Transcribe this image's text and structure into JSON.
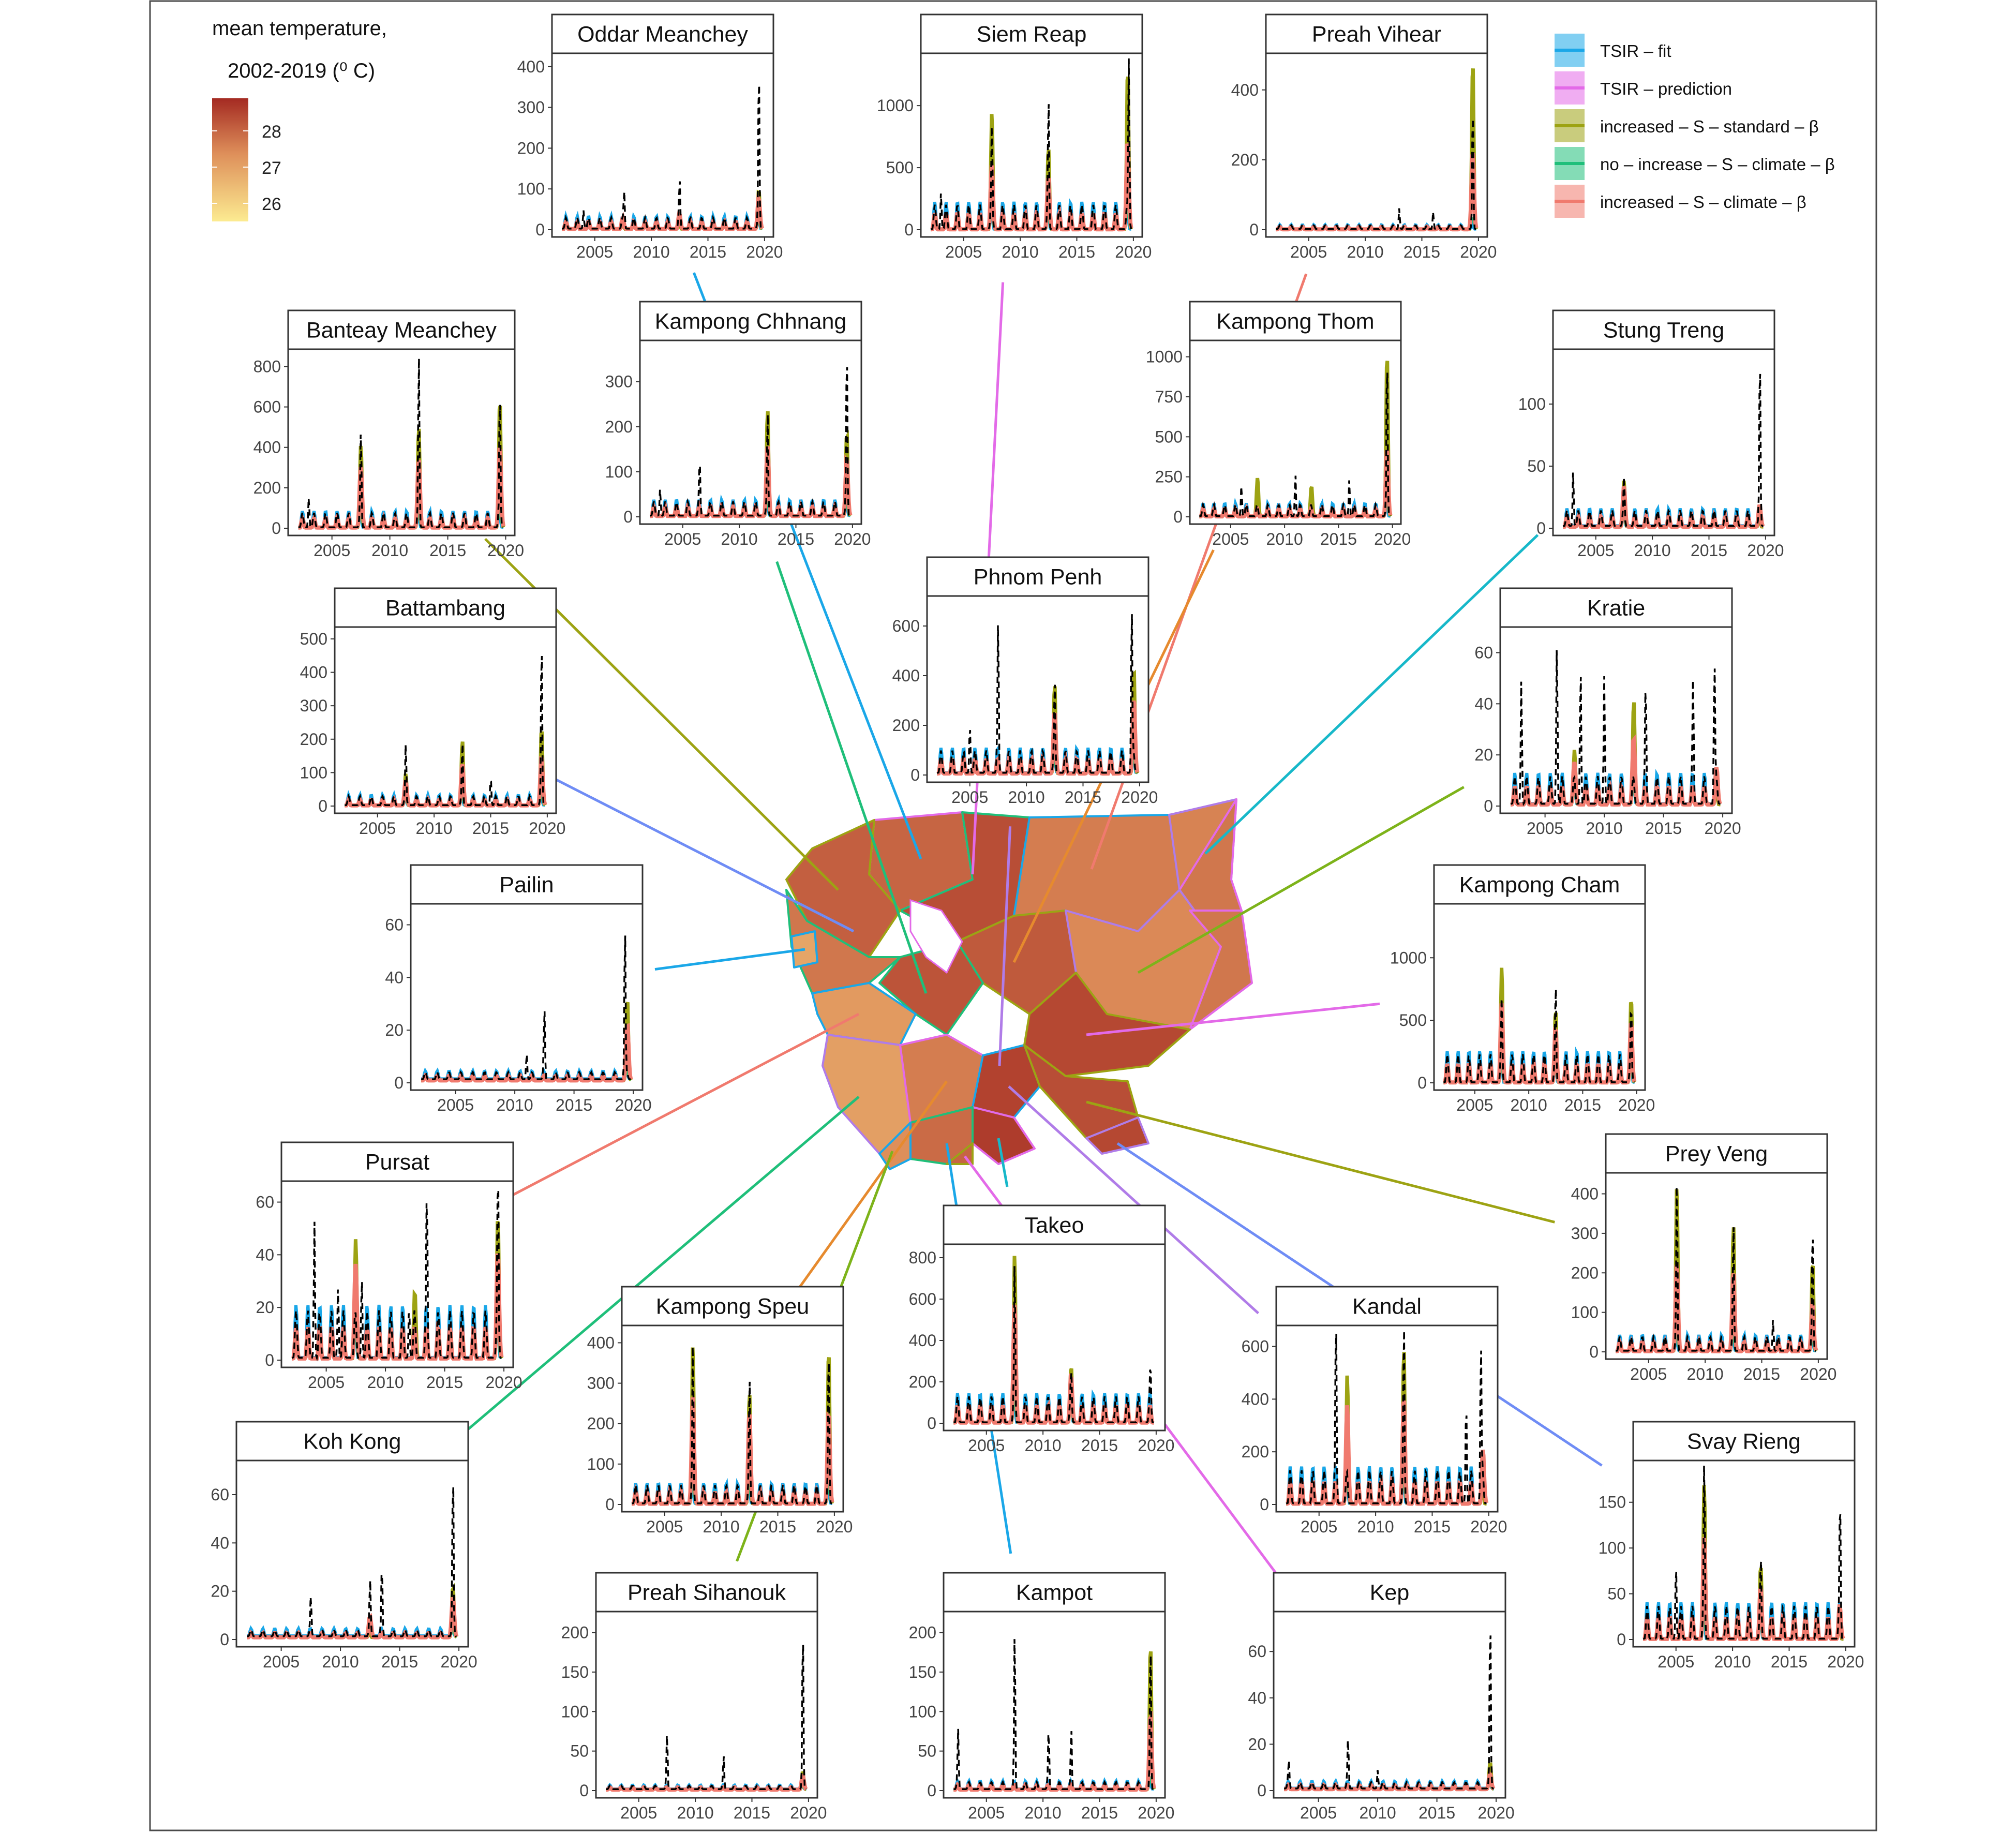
{
  "colors": {
    "tsir_fit": "#1AA7E8",
    "tsir_prediction": "#E36AE8",
    "increased_standard": "#9DA313",
    "no_increase_climate": "#1FBF7A",
    "increased_climate": "#F07A6E",
    "observed": "#000000",
    "temp_low": "#FCEB91",
    "temp_mid": "#DE8F5A",
    "temp_high": "#A42A22"
  },
  "temperature_legend": {
    "title_line1": "mean temperature,",
    "title_line2": "2002-2019 (⁰ C)",
    "ticks": [
      {
        "value": 28,
        "label": "28"
      },
      {
        "value": 27,
        "label": "27"
      },
      {
        "value": 26,
        "label": "26"
      }
    ],
    "range": [
      25.5,
      28.9
    ]
  },
  "series_legend": [
    {
      "key": "tsir_fit",
      "label": "TSIR – fit"
    },
    {
      "key": "tsir_prediction",
      "label": "TSIR – prediction"
    },
    {
      "key": "increased_standard",
      "label": "increased – S – standard – β"
    },
    {
      "key": "no_increase_climate",
      "label": "no – increase – S – climate – β"
    },
    {
      "key": "increased_climate",
      "label": "increased – S – climate – β"
    }
  ],
  "x_ticks": [
    "2005",
    "2010",
    "2015",
    "2020"
  ],
  "provinces": [
    {
      "name": "Oddar Meanchey",
      "temperature": 27.9,
      "yticks": [
        "0",
        "100",
        "200",
        "300",
        "400"
      ],
      "ymax": 420,
      "fit_amp": 30,
      "fit_base": 3,
      "obs_peaks": [
        [
          2004,
          45
        ],
        [
          2007.6,
          90
        ],
        [
          2012.5,
          100
        ],
        [
          2019.5,
          390
        ]
      ],
      "std_peaks": [
        [
          2019.5,
          80
        ]
      ],
      "clim_peaks": [
        [
          2007.5,
          10
        ],
        [
          2012.5,
          20
        ],
        [
          2019.5,
          60
        ]
      ]
    },
    {
      "name": "Siem Reap",
      "temperature": 28.3,
      "yticks": [
        "0",
        "500",
        "1000"
      ],
      "ymax": 1380,
      "fit_amp": 220,
      "fit_base": 5,
      "obs_peaks": [
        [
          2003,
          300
        ],
        [
          2007.5,
          700
        ],
        [
          2012.5,
          900
        ],
        [
          2019.6,
          1350
        ]
      ],
      "std_peaks": [
        [
          2007.5,
          830
        ],
        [
          2012.5,
          550
        ],
        [
          2019.5,
          1200
        ]
      ],
      "clim_peaks": [
        [
          2007.5,
          400
        ],
        [
          2012.5,
          300
        ],
        [
          2019.5,
          600
        ]
      ]
    },
    {
      "name": "Preah Vihear",
      "temperature": 27.5,
      "yticks": [
        "0",
        "200",
        "400"
      ],
      "ymax": 490,
      "fit_amp": 12,
      "fit_base": 2,
      "obs_peaks": [
        [
          2013,
          60
        ],
        [
          2016,
          50
        ],
        [
          2019.5,
          360
        ]
      ],
      "std_peaks": [
        [
          2019.5,
          480
        ]
      ],
      "clim_peaks": [
        [
          2019.5,
          220
        ]
      ]
    },
    {
      "name": "Banteay Meanchey",
      "temperature": 28.0,
      "yticks": [
        "0",
        "200",
        "400",
        "600",
        "800"
      ],
      "ymax": 860,
      "fit_amp": 80,
      "fit_base": 5,
      "obs_peaks": [
        [
          2003,
          150
        ],
        [
          2007.5,
          430
        ],
        [
          2012.5,
          820
        ],
        [
          2019.5,
          650
        ]
      ],
      "std_peaks": [
        [
          2007.5,
          370
        ],
        [
          2012.5,
          460
        ],
        [
          2019.5,
          600
        ]
      ],
      "clim_peaks": [
        [
          2007.5,
          260
        ],
        [
          2012.5,
          300
        ],
        [
          2019.5,
          360
        ]
      ]
    },
    {
      "name": "Kampong Chhnang",
      "temperature": 28.2,
      "yticks": [
        "0",
        "100",
        "200",
        "300"
      ],
      "ymax": 380,
      "fit_amp": 35,
      "fit_base": 3,
      "obs_peaks": [
        [
          2003,
          60
        ],
        [
          2006.5,
          100
        ],
        [
          2012.5,
          210
        ],
        [
          2019.5,
          360
        ]
      ],
      "std_peaks": [
        [
          2012.5,
          220
        ],
        [
          2019.5,
          170
        ]
      ],
      "clim_peaks": [
        [
          2012.5,
          140
        ],
        [
          2019.5,
          110
        ]
      ]
    },
    {
      "name": "Kampong Thom",
      "temperature": 28.1,
      "yticks": [
        "0",
        "250",
        "500",
        "750",
        "1000"
      ],
      "ymax": 1070,
      "fit_amp": 80,
      "fit_base": 5,
      "obs_peaks": [
        [
          2006,
          200
        ],
        [
          2011,
          270
        ],
        [
          2016,
          230
        ],
        [
          2019.5,
          990
        ]
      ],
      "std_peaks": [
        [
          2007.5,
          200
        ],
        [
          2012.5,
          150
        ],
        [
          2019.5,
          990
        ]
      ],
      "clim_peaks": [
        [
          2019.5,
          380
        ]
      ]
    },
    {
      "name": "Stung Treng",
      "temperature": 27.4,
      "yticks": [
        "0",
        "50",
        "100"
      ],
      "ymax": 140,
      "fit_amp": 14,
      "fit_base": 2,
      "obs_peaks": [
        [
          2003,
          45
        ],
        [
          2007.5,
          30
        ],
        [
          2019.5,
          133
        ]
      ],
      "std_peaks": [
        [
          2007.5,
          30
        ]
      ],
      "clim_peaks": [
        [
          2007.5,
          25
        ],
        [
          2019.5,
          10
        ]
      ]
    },
    {
      "name": "Phnom Penh",
      "temperature": 28.7,
      "yticks": [
        "0",
        "200",
        "400",
        "600"
      ],
      "ymax": 700,
      "fit_amp": 100,
      "fit_base": 10,
      "obs_peaks": [
        [
          2005,
          200
        ],
        [
          2007.5,
          560
        ],
        [
          2012.5,
          300
        ],
        [
          2019.3,
          680
        ]
      ],
      "std_peaks": [
        [
          2012.5,
          310
        ],
        [
          2019.5,
          380
        ]
      ],
      "clim_peaks": [
        [
          2012.5,
          200
        ],
        [
          2019.5,
          250
        ]
      ]
    },
    {
      "name": "Battambang",
      "temperature": 27.6,
      "yticks": [
        "0",
        "100",
        "200",
        "300",
        "400",
        "500"
      ],
      "ymax": 520,
      "fit_amp": 30,
      "fit_base": 3,
      "obs_peaks": [
        [
          2007.5,
          170
        ],
        [
          2012.5,
          170
        ],
        [
          2015,
          90
        ],
        [
          2019.5,
          500
        ]
      ],
      "std_peaks": [
        [
          2007.5,
          80
        ],
        [
          2012.5,
          180
        ],
        [
          2019.5,
          220
        ]
      ],
      "clim_peaks": [
        [
          2007.5,
          60
        ],
        [
          2012.5,
          110
        ],
        [
          2019.5,
          130
        ]
      ]
    },
    {
      "name": "Kratie",
      "temperature": 27.3,
      "yticks": [
        "0",
        "20",
        "40",
        "60"
      ],
      "ymax": 68,
      "fit_amp": 12,
      "fit_base": 1,
      "obs_peaks": [
        [
          2003,
          50
        ],
        [
          2006,
          65
        ],
        [
          2008,
          55
        ],
        [
          2010,
          50
        ],
        [
          2013.5,
          40
        ],
        [
          2017.5,
          40
        ],
        [
          2019.3,
          55
        ]
      ],
      "std_peaks": [
        [
          2007.5,
          15
        ],
        [
          2012.5,
          35
        ]
      ],
      "clim_peaks": [
        [
          2007.5,
          10
        ],
        [
          2012.5,
          20
        ],
        [
          2019.5,
          8
        ]
      ]
    },
    {
      "name": "Pailin",
      "temperature": 26.8,
      "yticks": [
        "0",
        "20",
        "40",
        "60"
      ],
      "ymax": 66,
      "fit_amp": 3,
      "fit_base": 1.5,
      "obs_peaks": [
        [
          2011,
          10
        ],
        [
          2012.5,
          25
        ],
        [
          2019.3,
          60
        ]
      ],
      "std_peaks": [
        [
          2019.5,
          30
        ]
      ],
      "clim_peaks": [
        [
          2019.5,
          20
        ]
      ]
    },
    {
      "name": "Kampong Cham",
      "temperature": 28.4,
      "yticks": [
        "0",
        "500",
        "1000"
      ],
      "ymax": 1390,
      "fit_amp": 250,
      "fit_base": 5,
      "obs_peaks": [
        [
          2007.5,
          500
        ],
        [
          2012.5,
          600
        ],
        [
          2019.5,
          450
        ]
      ],
      "std_peaks": [
        [
          2007.5,
          800
        ],
        [
          2012.5,
          450
        ],
        [
          2019.5,
          550
        ]
      ],
      "clim_peaks": [
        [
          2007.5,
          500
        ],
        [
          2012.5,
          300
        ],
        [
          2019.5,
          350
        ]
      ]
    },
    {
      "name": "Pursat",
      "temperature": 27.0,
      "yticks": [
        "0",
        "20",
        "40",
        "60"
      ],
      "ymax": 66,
      "fit_amp": 20,
      "fit_base": 1,
      "obs_peaks": [
        [
          2004,
          52
        ],
        [
          2006,
          28
        ],
        [
          2008,
          32
        ],
        [
          2012,
          20
        ],
        [
          2013.5,
          50
        ],
        [
          2019.5,
          60
        ]
      ],
      "std_peaks": [
        [
          2007.5,
          35
        ],
        [
          2012.5,
          15
        ],
        [
          2019.5,
          45
        ]
      ],
      "clim_peaks": [
        [
          2007.5,
          25
        ],
        [
          2019.5,
          30
        ]
      ]
    },
    {
      "name": "Prey Veng",
      "temperature": 28.3,
      "yticks": [
        "0",
        "100",
        "200",
        "300",
        "400"
      ],
      "ymax": 440,
      "fit_amp": 40,
      "fit_base": 3,
      "obs_peaks": [
        [
          2007.5,
          420
        ],
        [
          2012.5,
          300
        ],
        [
          2016,
          80
        ],
        [
          2019.5,
          300
        ]
      ],
      "std_peaks": [
        [
          2007.5,
          400
        ],
        [
          2012.5,
          300
        ],
        [
          2019.5,
          210
        ]
      ],
      "clim_peaks": [
        [
          2007.5,
          200
        ],
        [
          2012.5,
          180
        ],
        [
          2019.5,
          100
        ]
      ]
    },
    {
      "name": "Koh Kong",
      "temperature": 26.9,
      "yticks": [
        "0",
        "20",
        "40",
        "60"
      ],
      "ymax": 72,
      "fit_amp": 3,
      "fit_base": 1.5,
      "obs_peaks": [
        [
          2007.5,
          15
        ],
        [
          2012.5,
          22
        ],
        [
          2013.5,
          28
        ],
        [
          2019.5,
          70
        ]
      ],
      "std_peaks": [
        [
          2019.5,
          20
        ]
      ],
      "clim_peaks": [
        [
          2012.5,
          7
        ],
        [
          2019.5,
          15
        ]
      ]
    },
    {
      "name": "Kampong Speu",
      "temperature": 27.5,
      "yticks": [
        "0",
        "100",
        "200",
        "300",
        "400"
      ],
      "ymax": 430,
      "fit_amp": 50,
      "fit_base": 3,
      "obs_peaks": [
        [
          2007.5,
          380
        ],
        [
          2012.5,
          280
        ],
        [
          2019.5,
          370
        ]
      ],
      "std_peaks": [
        [
          2007.5,
          370
        ],
        [
          2012.5,
          250
        ],
        [
          2019.5,
          360
        ]
      ],
      "clim_peaks": [
        [
          2007.5,
          240
        ],
        [
          2012.5,
          200
        ],
        [
          2019.5,
          200
        ]
      ]
    },
    {
      "name": "Takeo",
      "temperature": 28.6,
      "yticks": [
        "0",
        "200",
        "400",
        "600",
        "800"
      ],
      "ymax": 840,
      "fit_amp": 140,
      "fit_base": 5,
      "obs_peaks": [
        [
          2007.5,
          700
        ],
        [
          2012.5,
          150
        ],
        [
          2019.5,
          180
        ]
      ],
      "std_peaks": [
        [
          2007.5,
          750
        ],
        [
          2012.5,
          200
        ]
      ],
      "clim_peaks": [
        [
          2007.5,
          500
        ],
        [
          2012.5,
          150
        ]
      ]
    },
    {
      "name": "Kandal",
      "temperature": 28.5,
      "yticks": [
        "0",
        "200",
        "400",
        "600"
      ],
      "ymax": 660,
      "fit_amp": 140,
      "fit_base": 5,
      "obs_peaks": [
        [
          2006.5,
          630
        ],
        [
          2012.5,
          610
        ],
        [
          2018,
          400
        ],
        [
          2019.3,
          600
        ]
      ],
      "std_peaks": [
        [
          2007.5,
          420
        ],
        [
          2012.5,
          520
        ]
      ],
      "clim_peaks": [
        [
          2007.5,
          300
        ],
        [
          2012.5,
          330
        ],
        [
          2019.5,
          130
        ]
      ]
    },
    {
      "name": "Svay Rieng",
      "temperature": 28.4,
      "yticks": [
        "0",
        "50",
        "100",
        "150"
      ],
      "ymax": 190,
      "fit_amp": 40,
      "fit_base": 1,
      "obs_peaks": [
        [
          2007.5,
          180
        ],
        [
          2005,
          85
        ],
        [
          2012.5,
          60
        ],
        [
          2019.5,
          130
        ]
      ],
      "std_peaks": [
        [
          2007.5,
          150
        ],
        [
          2012.5,
          60
        ]
      ],
      "clim_peaks": [
        [
          2007.5,
          90
        ],
        [
          2012.5,
          35
        ],
        [
          2019.5,
          15
        ]
      ]
    },
    {
      "name": "Preah Sihanouk",
      "temperature": 27.2,
      "yticks": [
        "0",
        "50",
        "100",
        "150",
        "200"
      ],
      "ymax": 220,
      "fit_amp": 5,
      "fit_base": 2,
      "obs_peaks": [
        [
          2007.5,
          70
        ],
        [
          2012.5,
          40
        ],
        [
          2019.5,
          210
        ]
      ],
      "std_peaks": [
        [
          2019.5,
          20
        ]
      ],
      "clim_peaks": [
        [
          2019.5,
          15
        ]
      ]
    },
    {
      "name": "Kampot",
      "temperature": 27.8,
      "yticks": [
        "0",
        "50",
        "100",
        "150",
        "200"
      ],
      "ymax": 220,
      "fit_amp": 10,
      "fit_base": 2,
      "obs_peaks": [
        [
          2002.5,
          70
        ],
        [
          2007.5,
          200
        ],
        [
          2010.5,
          70
        ],
        [
          2012.5,
          70
        ],
        [
          2019.5,
          190
        ]
      ],
      "std_peaks": [
        [
          2019.5,
          180
        ]
      ],
      "clim_peaks": [
        [
          2019.5,
          90
        ]
      ]
    },
    {
      "name": "Kep",
      "temperature": 27.9,
      "yticks": [
        "0",
        "20",
        "40",
        "60"
      ],
      "ymax": 75,
      "fit_amp": 3,
      "fit_base": 1,
      "obs_peaks": [
        [
          2002.5,
          10
        ],
        [
          2007.5,
          20
        ],
        [
          2010,
          8
        ],
        [
          2019.5,
          75
        ]
      ],
      "std_peaks": [
        [
          2019.5,
          10
        ]
      ],
      "clim_peaks": [
        [
          2019.5,
          5
        ]
      ]
    }
  ],
  "chart_data": {
    "type": "line",
    "x_range": [
      2002,
      2020
    ],
    "xlabel": "",
    "ylabel": "",
    "legend_position": "top-right",
    "series_names": [
      "TSIR – fit",
      "TSIR – prediction",
      "increased – S – standard – β",
      "no – increase – S – climate – β",
      "increased – S – climate – β"
    ],
    "panels": "see provinces[] for per-panel y ranges and estimated peak values"
  }
}
